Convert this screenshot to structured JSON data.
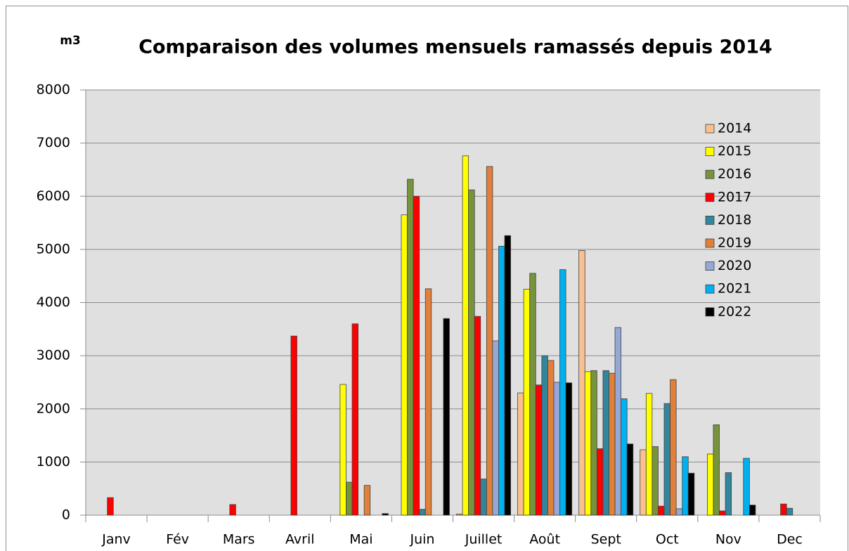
{
  "chart_data": {
    "type": "bar",
    "title": "Comparaison des volumes mensuels ramassés depuis 2014",
    "y_label": "m3",
    "categories": [
      "Janv",
      "Fév",
      "Mars",
      "Avril",
      "Mai",
      "Juin",
      "Juillet",
      "Août",
      "Sept",
      "Oct",
      "Nov",
      "Dec"
    ],
    "series": [
      {
        "name": "2014",
        "color": "#fac090",
        "values": [
          0,
          0,
          0,
          0,
          0,
          0,
          20,
          2300,
          4980,
          1230,
          0,
          0
        ]
      },
      {
        "name": "2015",
        "color": "#ffff00",
        "values": [
          0,
          0,
          0,
          0,
          2460,
          5650,
          6760,
          4250,
          2700,
          2290,
          1150,
          0
        ]
      },
      {
        "name": "2016",
        "color": "#77933c",
        "values": [
          0,
          0,
          0,
          0,
          620,
          6320,
          6120,
          4550,
          2720,
          1290,
          1700,
          0
        ]
      },
      {
        "name": "2017",
        "color": "#ff0000",
        "values": [
          330,
          0,
          200,
          3370,
          3600,
          6000,
          3740,
          2450,
          1250,
          170,
          80,
          210
        ]
      },
      {
        "name": "2018",
        "color": "#31859c",
        "values": [
          0,
          0,
          0,
          0,
          0,
          110,
          680,
          3000,
          2720,
          2100,
          800,
          130
        ]
      },
      {
        "name": "2019",
        "color": "#e0803a",
        "values": [
          0,
          0,
          0,
          0,
          560,
          4260,
          6560,
          2910,
          2670,
          2550,
          0,
          0
        ]
      },
      {
        "name": "2020",
        "color": "#95a9d6",
        "values": [
          0,
          0,
          0,
          0,
          0,
          0,
          3280,
          2500,
          3530,
          120,
          0,
          0
        ]
      },
      {
        "name": "2021",
        "color": "#00b0f0",
        "values": [
          0,
          0,
          0,
          0,
          0,
          0,
          5060,
          4620,
          2190,
          1100,
          1070,
          0
        ]
      },
      {
        "name": "2022",
        "color": "#000000",
        "values": [
          0,
          0,
          0,
          0,
          30,
          3700,
          5260,
          2490,
          1340,
          790,
          190,
          0
        ]
      }
    ],
    "ylim": [
      0,
      8000
    ],
    "yticks": [
      0,
      1000,
      2000,
      3000,
      4000,
      5000,
      6000,
      7000,
      8000
    ],
    "grid": true,
    "legend": "right"
  }
}
